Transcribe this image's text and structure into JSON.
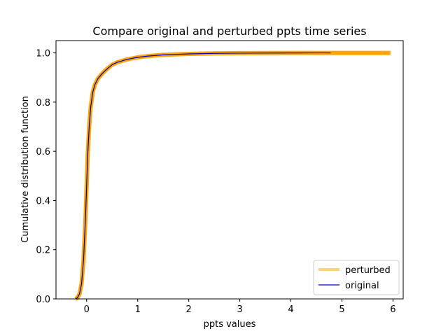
{
  "chart_data": {
    "type": "line",
    "title": "Compare original and perturbed ppts time series",
    "xlabel": "ppts values",
    "ylabel": "Cumulative distribution function",
    "xlim": [
      -0.6,
      6.2
    ],
    "ylim": [
      0.0,
      1.05
    ],
    "xticks": [
      0,
      1,
      2,
      3,
      4,
      5,
      6
    ],
    "yticks": [
      0.0,
      0.2,
      0.4,
      0.6,
      0.8,
      1.0
    ],
    "xtick_labels": [
      "0",
      "1",
      "2",
      "3",
      "4",
      "5",
      "6"
    ],
    "ytick_labels": [
      "0.0",
      "0.2",
      "0.4",
      "0.6",
      "0.8",
      "1.0"
    ],
    "grid": false,
    "legend_position": "lower-right",
    "series": [
      {
        "name": "perturbed",
        "color": "#ffa500",
        "x": [
          -0.22,
          -0.18,
          -0.14,
          -0.1,
          -0.06,
          -0.02,
          0.0,
          0.02,
          0.05,
          0.08,
          0.12,
          0.16,
          0.22,
          0.3,
          0.4,
          0.5,
          0.6,
          0.8,
          1.0,
          1.2,
          1.5,
          2.0,
          2.5,
          3.0,
          3.5,
          4.0,
          4.5,
          4.8,
          5.0,
          5.5,
          5.95
        ],
        "values": [
          0.0,
          0.005,
          0.02,
          0.06,
          0.16,
          0.34,
          0.46,
          0.58,
          0.7,
          0.78,
          0.84,
          0.87,
          0.895,
          0.915,
          0.935,
          0.952,
          0.962,
          0.974,
          0.982,
          0.987,
          0.992,
          0.996,
          0.998,
          0.999,
          0.9995,
          0.9998,
          1.0,
          1.0,
          1.0,
          1.0,
          1.0
        ]
      },
      {
        "name": "original",
        "color": "#0000cc",
        "x": [
          -0.22,
          -0.18,
          -0.14,
          -0.1,
          -0.06,
          -0.02,
          0.0,
          0.02,
          0.05,
          0.08,
          0.12,
          0.16,
          0.22,
          0.3,
          0.4,
          0.5,
          0.6,
          0.8,
          1.0,
          1.2,
          1.5,
          2.0,
          2.5,
          3.0,
          3.5,
          4.0,
          4.5,
          4.78
        ],
        "values": [
          0.0,
          0.005,
          0.02,
          0.06,
          0.16,
          0.34,
          0.46,
          0.58,
          0.7,
          0.78,
          0.84,
          0.87,
          0.895,
          0.915,
          0.935,
          0.952,
          0.962,
          0.974,
          0.982,
          0.987,
          0.992,
          0.996,
          0.998,
          0.999,
          0.9995,
          0.9998,
          1.0,
          1.0
        ]
      }
    ]
  }
}
